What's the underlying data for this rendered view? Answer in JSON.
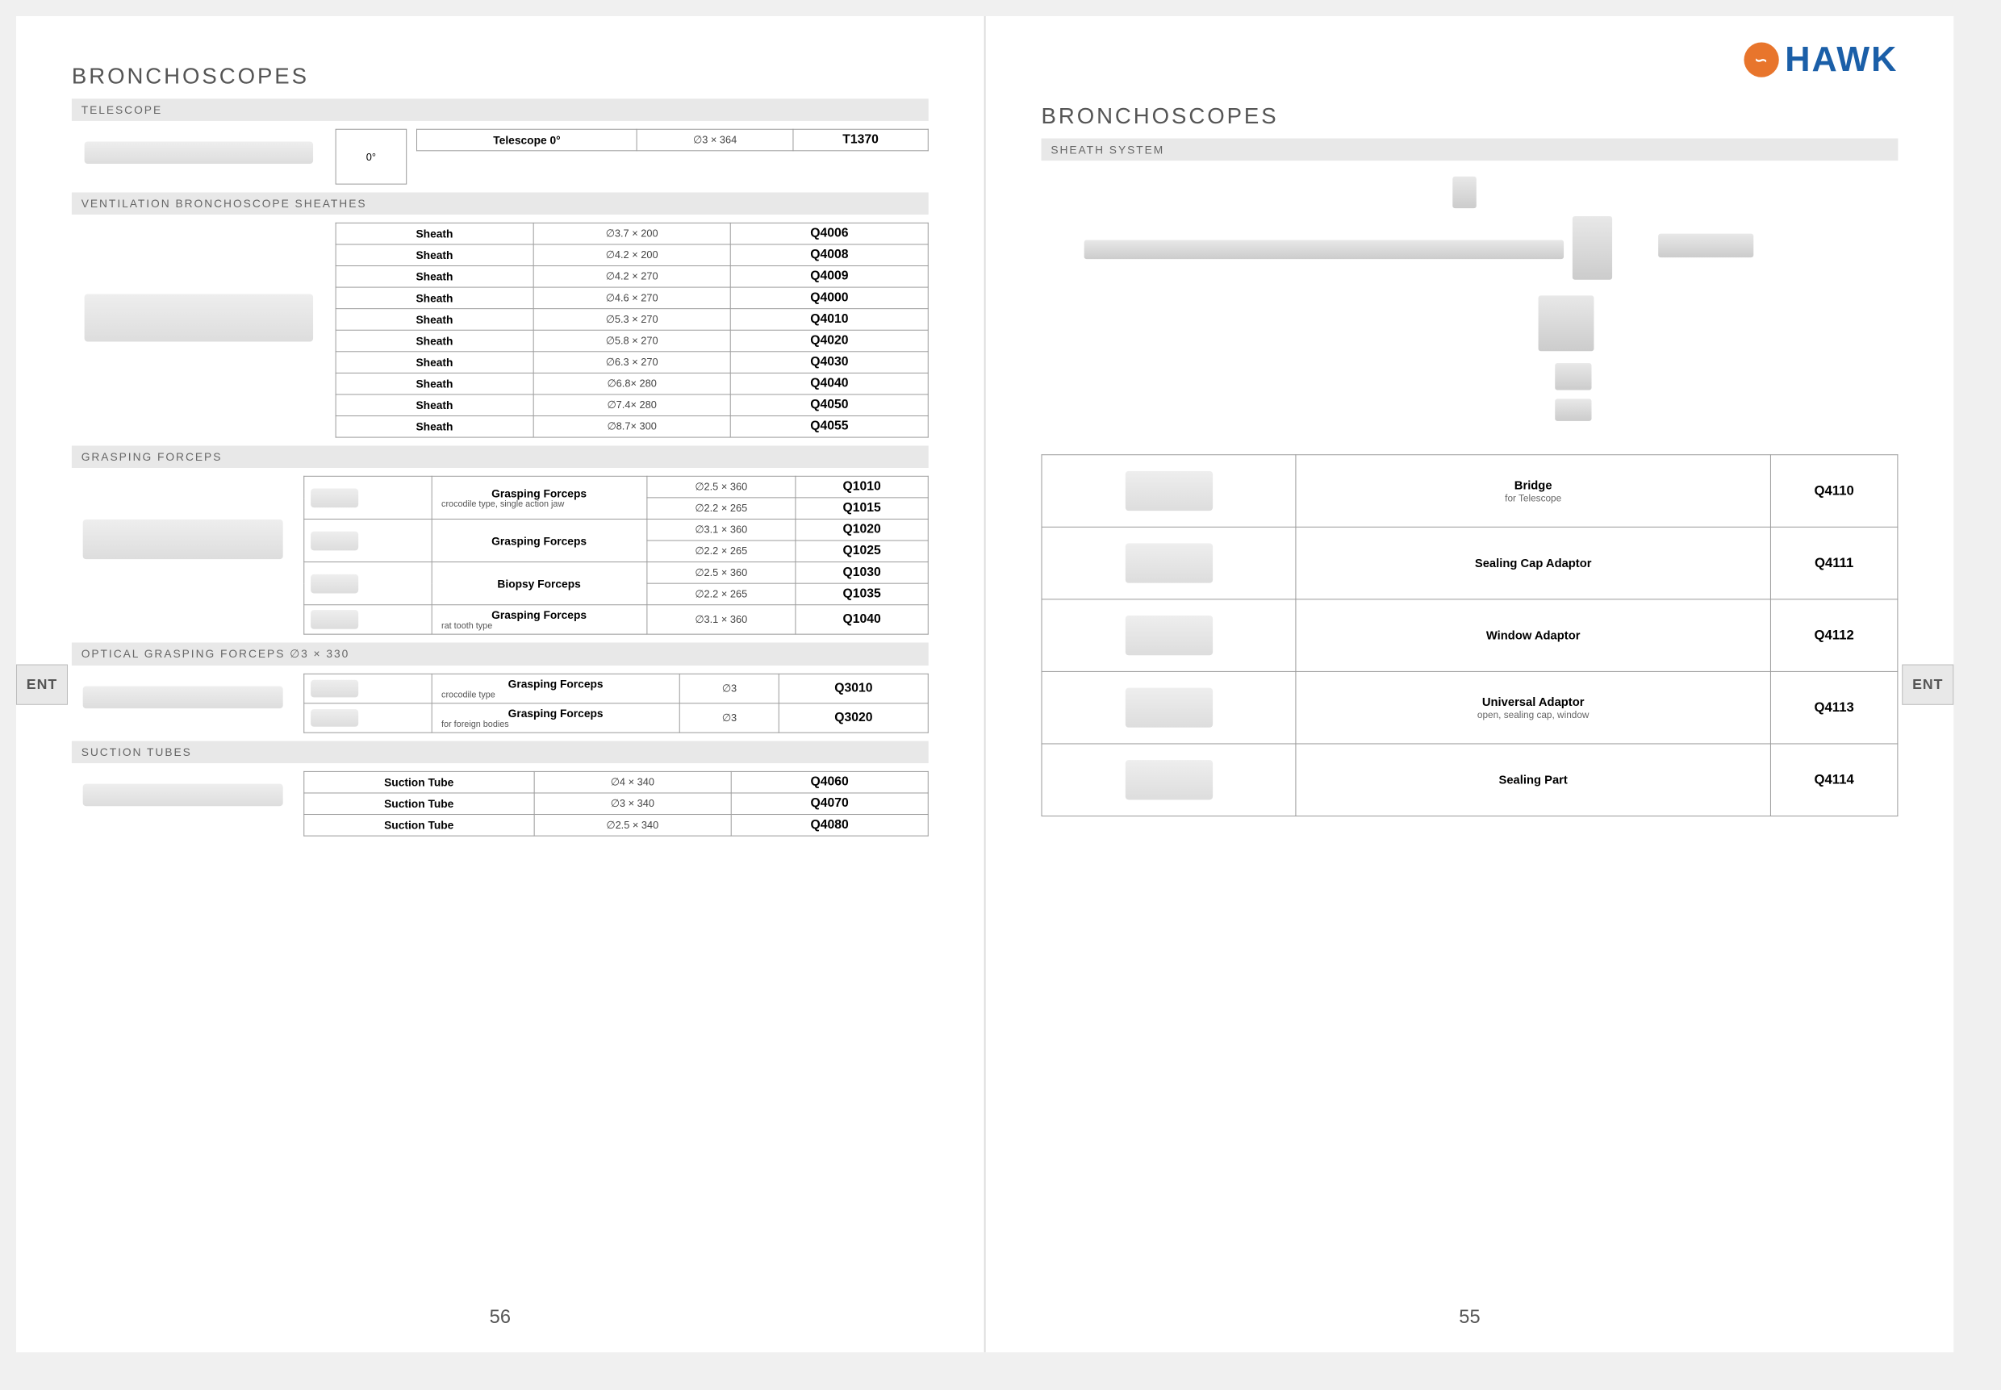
{
  "brand": {
    "name": "HAWK",
    "logo_bg": "#e8752c",
    "logo_text_color": "#1b5fa8"
  },
  "tab_label": "ENT",
  "left": {
    "title": "BRONCHOSCOPES",
    "page_num": "56",
    "sections": {
      "telescope": {
        "bar": "TELESCOPE",
        "angle_label": "0°",
        "row": {
          "name": "Telescope 0°",
          "dim": "∅3 × 364",
          "code": "T1370"
        }
      },
      "sheathes": {
        "bar": "VENTILATION BRONCHOSCOPE SHEATHES",
        "rows": [
          {
            "name": "Sheath",
            "dim": "∅3.7 × 200",
            "code": "Q4006"
          },
          {
            "name": "Sheath",
            "dim": "∅4.2 × 200",
            "code": "Q4008"
          },
          {
            "name": "Sheath",
            "dim": "∅4.2 × 270",
            "code": "Q4009"
          },
          {
            "name": "Sheath",
            "dim": "∅4.6 × 270",
            "code": "Q4000"
          },
          {
            "name": "Sheath",
            "dim": "∅5.3 × 270",
            "code": "Q4010"
          },
          {
            "name": "Sheath",
            "dim": "∅5.8 × 270",
            "code": "Q4020"
          },
          {
            "name": "Sheath",
            "dim": "∅6.3 × 270",
            "code": "Q4030"
          },
          {
            "name": "Sheath",
            "dim": "∅6.8× 280",
            "code": "Q4040"
          },
          {
            "name": "Sheath",
            "dim": "∅7.4× 280",
            "code": "Q4050"
          },
          {
            "name": "Sheath",
            "dim": "∅8.7× 300",
            "code": "Q4055"
          }
        ]
      },
      "grasping": {
        "bar": "GRASPING FORCEPS",
        "groups": [
          {
            "name": "Grasping Forceps",
            "sub": "crocodile type, single action jaw",
            "rows": [
              {
                "dim": "∅2.5 × 360",
                "code": "Q1010"
              },
              {
                "dim": "∅2.2 × 265",
                "code": "Q1015"
              }
            ]
          },
          {
            "name": "Grasping Forceps",
            "sub": "",
            "rows": [
              {
                "dim": "∅3.1 × 360",
                "code": "Q1020"
              },
              {
                "dim": "∅2.2 × 265",
                "code": "Q1025"
              }
            ]
          },
          {
            "name": "Biopsy Forceps",
            "sub": "",
            "rows": [
              {
                "dim": "∅2.5 × 360",
                "code": "Q1030"
              },
              {
                "dim": "∅2.2 × 265",
                "code": "Q1035"
              }
            ]
          },
          {
            "name": "Grasping Forceps",
            "sub": "rat tooth type",
            "rows": [
              {
                "dim": "∅3.1 × 360",
                "code": "Q1040"
              }
            ]
          }
        ]
      },
      "optical": {
        "bar": "OPTICAL GRASPING FORCEPS    ∅3 × 330",
        "rows": [
          {
            "name": "Grasping Forceps",
            "sub": "crocodile type",
            "dim": "∅3",
            "code": "Q3010"
          },
          {
            "name": "Grasping Forceps",
            "sub": "for foreign bodies",
            "dim": "∅3",
            "code": "Q3020"
          }
        ]
      },
      "suction": {
        "bar": "SUCTION TUBES",
        "rows": [
          {
            "name": "Suction Tube",
            "dim": "∅4 × 340",
            "code": "Q4060"
          },
          {
            "name": "Suction Tube",
            "dim": "∅3 × 340",
            "code": "Q4070"
          },
          {
            "name": "Suction Tube",
            "dim": "∅2.5 × 340",
            "code": "Q4080"
          }
        ]
      }
    }
  },
  "right": {
    "title": "BRONCHOSCOPES",
    "page_num": "55",
    "section_bar": "SHEATH SYSTEM",
    "rows": [
      {
        "name": "Bridge",
        "sub": "for Telescope",
        "code": "Q4110"
      },
      {
        "name": "Sealing Cap Adaptor",
        "sub": "",
        "code": "Q4111"
      },
      {
        "name": "Window Adaptor",
        "sub": "",
        "code": "Q4112"
      },
      {
        "name": "Universal Adaptor",
        "sub": "open, sealing cap, window",
        "code": "Q4113"
      },
      {
        "name": "Sealing Part",
        "sub": "",
        "code": "Q4114"
      }
    ]
  }
}
